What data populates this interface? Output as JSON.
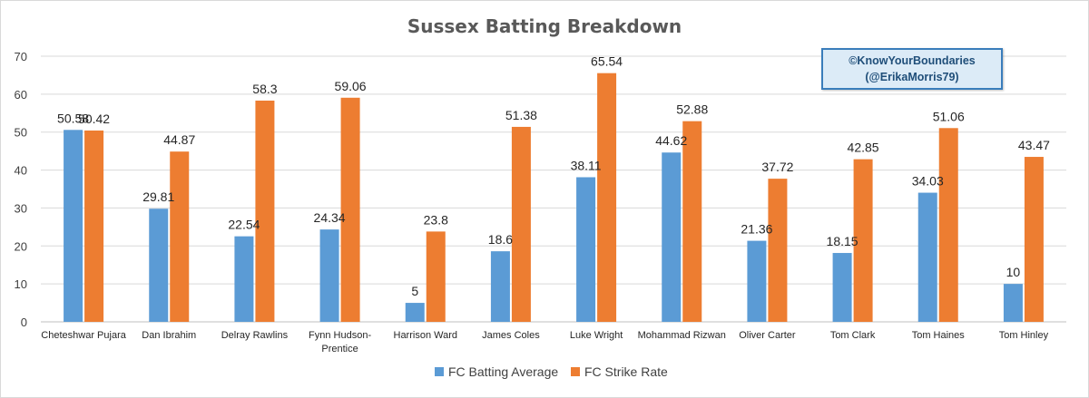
{
  "chart_data": {
    "type": "bar",
    "title": "Sussex Batting Breakdown",
    "xlabel": "",
    "ylabel": "",
    "ylim": [
      0,
      70
    ],
    "yticks": [
      0,
      10,
      20,
      30,
      40,
      50,
      60,
      70
    ],
    "grid": true,
    "legend_position": "bottom",
    "categories": [
      "Cheteshwar Pujara",
      "Dan Ibrahim",
      "Delray Rawlins",
      "Fynn Hudson-Prentice",
      "Harrison Ward",
      "James Coles",
      "Luke Wright",
      "Mohammad Rizwan",
      "Oliver Carter",
      "Tom Clark",
      "Tom Haines",
      "Tom Hinley"
    ],
    "series": [
      {
        "name": "FC Batting Average",
        "color": "#5b9bd5",
        "values": [
          50.58,
          29.81,
          22.54,
          24.34,
          5,
          18.6,
          38.11,
          44.62,
          21.36,
          18.15,
          34.03,
          10
        ],
        "labels": [
          "50.58",
          "29.81",
          "22.54",
          "24.34",
          "5",
          "18.6",
          "38.11",
          "44.62",
          "21.36",
          "18.15",
          "34.03",
          "10"
        ]
      },
      {
        "name": "FC Strike Rate",
        "color": "#ed7d31",
        "values": [
          50.42,
          44.87,
          58.3,
          59.06,
          23.8,
          51.38,
          65.54,
          52.88,
          37.72,
          42.85,
          51.06,
          43.47
        ],
        "labels": [
          "50.42",
          "44.87",
          "58.3",
          "59.06",
          "23.8",
          "51.38",
          "65.54",
          "52.88",
          "37.72",
          "42.85",
          "51.06",
          "43.47"
        ]
      }
    ]
  },
  "watermark": {
    "line1": "©KnowYourBoundaries",
    "line2": "(@ErikaMorris79)"
  }
}
